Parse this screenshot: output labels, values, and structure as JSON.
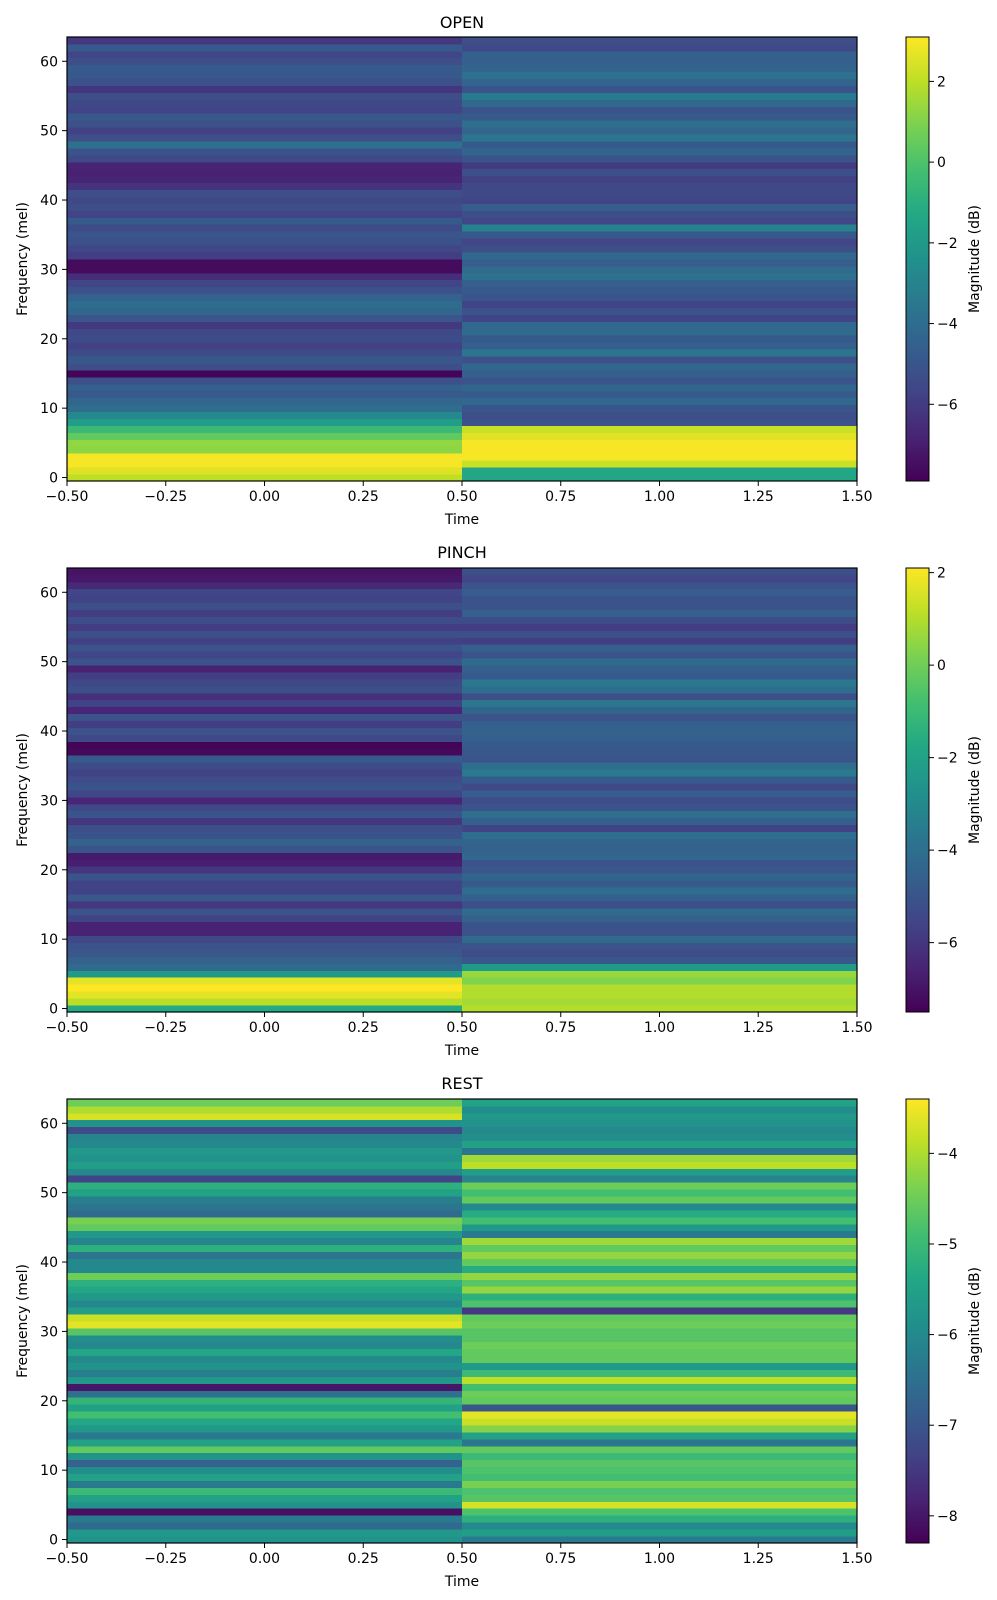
{
  "chart_data": [
    {
      "type": "heatmap",
      "title": "OPEN",
      "xlabel": "Time",
      "ylabel": "Frequency (mel)",
      "colorbar_label": "Magnitude (dB)",
      "colormap": "viridis",
      "xlim": [
        -0.5,
        1.5
      ],
      "ylim": [
        -0.5,
        63.5
      ],
      "clim": [
        -7.9,
        3.1
      ],
      "x_ticks": [
        -0.5,
        -0.25,
        0.0,
        0.25,
        0.5,
        0.75,
        1.0,
        1.25,
        1.5
      ],
      "x_tick_labels": [
        "−0.50",
        "−0.25",
        "0.00",
        "0.25",
        "0.50",
        "0.75",
        "1.00",
        "1.25",
        "1.50"
      ],
      "y_ticks": [
        0,
        10,
        20,
        30,
        40,
        50,
        60
      ],
      "y_tick_labels": [
        "0",
        "10",
        "20",
        "30",
        "40",
        "50",
        "60"
      ],
      "colorbar_ticks": [
        2,
        0,
        -2,
        -4,
        -6
      ],
      "colorbar_tick_labels": [
        "2",
        "0",
        "−2",
        "−4",
        "−6"
      ],
      "time_columns": [
        0,
        1
      ],
      "values_time0": [
        2.0,
        2.6,
        3.0,
        3.0,
        1.2,
        1.3,
        0.4,
        -0.5,
        -1.8,
        -2.8,
        -4.0,
        -4.3,
        -4.8,
        -4.6,
        -5.2,
        -7.8,
        -5.3,
        -4.9,
        -5.4,
        -5.8,
        -5.4,
        -5.5,
        -6.1,
        -5.0,
        -4.3,
        -4.0,
        -4.5,
        -5.2,
        -5.6,
        -6.5,
        -7.6,
        -7.6,
        -5.9,
        -5.6,
        -5.2,
        -5.0,
        -5.4,
        -4.8,
        -5.7,
        -5.3,
        -5.5,
        -5.3,
        -6.3,
        -6.8,
        -6.9,
        -6.8,
        -5.5,
        -5.1,
        -3.8,
        -5.3,
        -5.8,
        -5.2,
        -4.9,
        -5.7,
        -5.5,
        -5.3,
        -6.2,
        -5.2,
        -4.9,
        -4.8,
        -5.3,
        -5.6,
        -4.8,
        -6.1
      ],
      "values_time1": [
        -1.4,
        -1.4,
        2.2,
        3.0,
        3.0,
        3.0,
        2.6,
        2.2,
        -5.2,
        -5.3,
        -5.0,
        -4.2,
        -4.8,
        -4.3,
        -5.1,
        -4.6,
        -4.3,
        -5.2,
        -3.6,
        -4.6,
        -4.8,
        -4.1,
        -4.2,
        -5.7,
        -5.1,
        -5.7,
        -5.0,
        -4.8,
        -4.6,
        -3.8,
        -4.1,
        -4.7,
        -4.2,
        -5.3,
        -5.6,
        -4.9,
        -3.0,
        -5.6,
        -5.3,
        -4.7,
        -5.7,
        -5.5,
        -5.5,
        -5.8,
        -5.3,
        -6.0,
        -5.1,
        -4.4,
        -4.8,
        -3.6,
        -4.3,
        -3.9,
        -4.8,
        -5.1,
        -4.2,
        -3.4,
        -5.1,
        -4.4,
        -3.8,
        -4.4,
        -4.6,
        -4.6,
        -5.5,
        -5.3
      ]
    },
    {
      "type": "heatmap",
      "title": "PINCH",
      "xlabel": "Time",
      "ylabel": "Frequency (mel)",
      "colorbar_label": "Magnitude (dB)",
      "colormap": "viridis",
      "xlim": [
        -0.5,
        1.5
      ],
      "ylim": [
        -0.5,
        63.5
      ],
      "clim": [
        -7.5,
        2.1
      ],
      "x_ticks": [
        -0.5,
        -0.25,
        0.0,
        0.25,
        0.5,
        0.75,
        1.0,
        1.25,
        1.5
      ],
      "x_tick_labels": [
        "−0.50",
        "−0.25",
        "0.00",
        "0.25",
        "0.50",
        "0.75",
        "1.00",
        "1.25",
        "1.50"
      ],
      "y_ticks": [
        0,
        10,
        20,
        30,
        40,
        50,
        60
      ],
      "y_tick_labels": [
        "0",
        "10",
        "20",
        "30",
        "40",
        "50",
        "60"
      ],
      "colorbar_ticks": [
        2,
        0,
        -2,
        -4,
        -6
      ],
      "colorbar_tick_labels": [
        "2",
        "0",
        "−2",
        "−4",
        "−6"
      ],
      "time_columns": [
        0,
        1
      ],
      "values_time0": [
        -1.7,
        1.1,
        1.7,
        2.1,
        1.7,
        -2.3,
        -4.2,
        -4.5,
        -4.9,
        -5.1,
        -5.4,
        -6.6,
        -6.6,
        -5.6,
        -5.1,
        -6.0,
        -4.9,
        -5.6,
        -5.6,
        -5.0,
        -6.0,
        -6.7,
        -6.8,
        -5.0,
        -4.5,
        -5.0,
        -5.2,
        -6.0,
        -5.0,
        -5.4,
        -6.5,
        -5.5,
        -5.0,
        -5.3,
        -5.6,
        -5.3,
        -4.8,
        -7.3,
        -7.4,
        -5.4,
        -5.1,
        -5.8,
        -5.1,
        -6.5,
        -5.6,
        -6.2,
        -5.2,
        -5.4,
        -5.8,
        -6.6,
        -5.0,
        -5.5,
        -5.1,
        -5.7,
        -5.2,
        -5.8,
        -5.3,
        -5.8,
        -5.2,
        -5.6,
        -5.5,
        -6.4,
        -6.9,
        -7.0
      ],
      "values_time1": [
        1.0,
        0.8,
        1.0,
        1.0,
        0.3,
        0.6,
        -2.3,
        -4.9,
        -5.3,
        -5.0,
        -4.2,
        -5.1,
        -5.0,
        -4.5,
        -4.2,
        -5.2,
        -4.6,
        -4.1,
        -4.8,
        -4.4,
        -4.9,
        -5.0,
        -4.3,
        -4.5,
        -4.4,
        -4.1,
        -5.6,
        -4.6,
        -4.0,
        -5.0,
        -5.3,
        -4.7,
        -5.4,
        -4.8,
        -3.6,
        -4.1,
        -5.0,
        -4.9,
        -4.8,
        -4.6,
        -4.5,
        -4.6,
        -5.0,
        -4.4,
        -3.7,
        -5.2,
        -4.1,
        -3.7,
        -4.8,
        -4.6,
        -4.2,
        -5.0,
        -4.6,
        -5.8,
        -5.2,
        -5.8,
        -5.3,
        -4.6,
        -5.0,
        -5.0,
        -4.7,
        -5.1,
        -5.5,
        -5.2
      ]
    },
    {
      "type": "heatmap",
      "title": "REST",
      "xlabel": "Time",
      "ylabel": "Frequency (mel)",
      "colorbar_label": "Magnitude (dB)",
      "colormap": "viridis",
      "xlim": [
        -0.5,
        1.5
      ],
      "ylim": [
        -0.5,
        63.5
      ],
      "clim": [
        -8.3,
        -3.4
      ],
      "x_ticks": [
        -0.5,
        -0.25,
        0.0,
        0.25,
        0.5,
        0.75,
        1.0,
        1.25,
        1.5
      ],
      "x_tick_labels": [
        "−0.50",
        "−0.25",
        "0.00",
        "0.25",
        "0.50",
        "0.75",
        "1.00",
        "1.25",
        "1.50"
      ],
      "y_ticks": [
        0,
        10,
        20,
        30,
        40,
        50,
        60
      ],
      "y_tick_labels": [
        "0",
        "10",
        "20",
        "30",
        "40",
        "50",
        "60"
      ],
      "colorbar_ticks": [
        -4,
        -5,
        -6,
        -7,
        -8
      ],
      "colorbar_tick_labels": [
        "−4",
        "−5",
        "−6",
        "−7",
        "−8"
      ],
      "time_columns": [
        0,
        1
      ],
      "values_time0": [
        -5.8,
        -5.7,
        -6.6,
        -6.3,
        -8.1,
        -5.8,
        -5.5,
        -5.0,
        -6.3,
        -5.5,
        -5.9,
        -6.8,
        -5.8,
        -4.6,
        -5.5,
        -6.3,
        -5.7,
        -5.4,
        -4.9,
        -5.5,
        -5.1,
        -6.5,
        -8.0,
        -5.7,
        -6.2,
        -5.8,
        -6.0,
        -5.4,
        -6.0,
        -5.9,
        -4.7,
        -3.6,
        -3.8,
        -5.6,
        -6.0,
        -5.7,
        -5.4,
        -5.2,
        -4.5,
        -6.0,
        -6.0,
        -6.4,
        -5.2,
        -6.1,
        -5.7,
        -4.6,
        -4.4,
        -6.6,
        -6.4,
        -6.2,
        -5.5,
        -5.2,
        -7.3,
        -6.0,
        -5.6,
        -5.8,
        -5.7,
        -6.0,
        -6.1,
        -7.2,
        -5.8,
        -3.7,
        -4.0,
        -4.5
      ],
      "values_time1": [
        -6.3,
        -5.6,
        -6.0,
        -5.2,
        -4.8,
        -3.7,
        -4.7,
        -4.8,
        -4.4,
        -4.9,
        -4.8,
        -4.7,
        -5.0,
        -4.6,
        -6.4,
        -5.5,
        -4.3,
        -3.8,
        -3.6,
        -7.0,
        -4.6,
        -4.5,
        -4.9,
        -3.9,
        -5.0,
        -5.7,
        -4.6,
        -4.6,
        -4.5,
        -4.7,
        -4.7,
        -4.5,
        -4.6,
        -7.5,
        -4.8,
        -5.2,
        -4.2,
        -4.7,
        -4.2,
        -5.3,
        -4.6,
        -4.2,
        -4.6,
        -4.1,
        -6.3,
        -5.7,
        -4.9,
        -5.3,
        -6.0,
        -4.6,
        -4.9,
        -4.5,
        -6.1,
        -5.6,
        -3.9,
        -4.1,
        -6.4,
        -5.5,
        -5.9,
        -6.0,
        -5.8,
        -5.7,
        -5.9,
        -5.5
      ]
    }
  ]
}
